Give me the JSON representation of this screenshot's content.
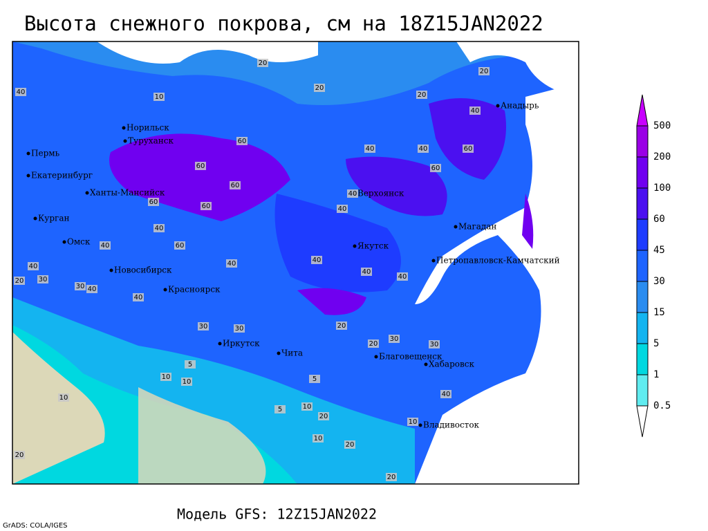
{
  "header": {
    "title": "Высота снежного покрова, см на 18Z15JAN2022"
  },
  "cities": [
    "Анадырь",
    "Норильск",
    "Туруханск",
    "Пермь",
    "Екатеринбург",
    "Ханты-Мансийск",
    "Верхоянск",
    "Курган",
    "Омск",
    "Магадан",
    "Якутск",
    "Петропавловск-Камчатский",
    "Новосибирск",
    "Красноярск",
    "Иркутск",
    "Чита",
    "Благовещенск",
    "Хабаровск",
    "Владивосток"
  ],
  "contour_labels": [
    20,
    20,
    20,
    20,
    10,
    40,
    40,
    60,
    60,
    60,
    40,
    60,
    40,
    60,
    60,
    60,
    40,
    40,
    40,
    40,
    60,
    40,
    40,
    40,
    40,
    40,
    30,
    40,
    30,
    20,
    40,
    30,
    30,
    20,
    30,
    20,
    10,
    5,
    10,
    5,
    10,
    5,
    10,
    20,
    10,
    20,
    20,
    10,
    40,
    30,
    20
  ],
  "legend": {
    "levels": [
      500,
      200,
      100,
      60,
      45,
      30,
      15,
      5,
      1,
      0.5
    ],
    "colors": [
      "#c800ff",
      "#9a00e6",
      "#7000f0",
      "#4b10f0",
      "#1e3cff",
      "#1e64ff",
      "#2a8cf0",
      "#14b4f0",
      "#00d8e0",
      "#60ecf0",
      "#ffffff"
    ]
  },
  "footer": {
    "model": "Модель GFS: 12Z15JAN2022",
    "credit": "GrADS: COLA/IGES"
  }
}
